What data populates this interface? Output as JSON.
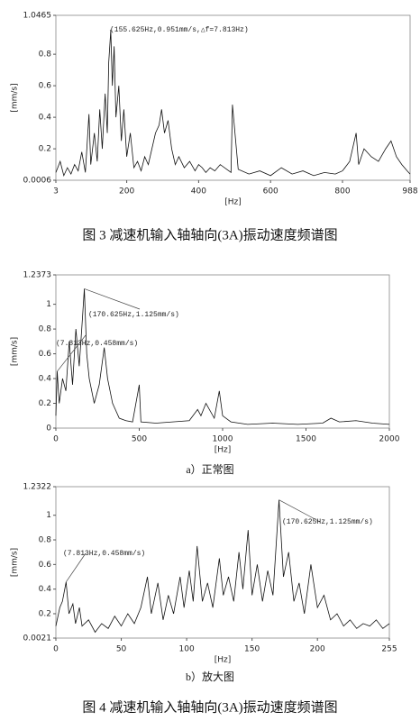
{
  "chart_data": [
    {
      "type": "line",
      "x_label": "[Hz]",
      "y_label": "[mm/s]",
      "x": [
        3,
        15,
        25,
        35,
        45,
        55,
        65,
        75,
        85,
        95,
        100,
        110,
        118,
        125,
        132,
        140,
        146,
        150,
        155.625,
        160,
        165,
        170,
        178,
        185,
        192,
        200,
        210,
        220,
        230,
        240,
        250,
        260,
        270,
        280,
        290,
        297,
        305,
        315,
        325,
        335,
        345,
        360,
        375,
        390,
        400,
        410,
        420,
        432,
        445,
        460,
        490,
        494,
        510,
        540,
        570,
        600,
        630,
        660,
        690,
        720,
        750,
        780,
        800,
        820,
        838,
        845,
        860,
        880,
        900,
        920,
        935,
        950,
        965,
        980,
        988
      ],
      "series": [
        {
          "name": "spectrum",
          "color": "#111111",
          "values": [
            0.05,
            0.12,
            0.03,
            0.08,
            0.04,
            0.1,
            0.06,
            0.18,
            0.05,
            0.42,
            0.1,
            0.3,
            0.12,
            0.45,
            0.2,
            0.55,
            0.3,
            0.75,
            0.951,
            0.6,
            0.85,
            0.4,
            0.6,
            0.25,
            0.45,
            0.15,
            0.3,
            0.08,
            0.12,
            0.06,
            0.15,
            0.1,
            0.2,
            0.3,
            0.35,
            0.45,
            0.3,
            0.38,
            0.2,
            0.1,
            0.15,
            0.08,
            0.12,
            0.06,
            0.1,
            0.08,
            0.05,
            0.08,
            0.06,
            0.1,
            0.05,
            0.48,
            0.07,
            0.04,
            0.06,
            0.03,
            0.08,
            0.04,
            0.06,
            0.03,
            0.05,
            0.04,
            0.06,
            0.12,
            0.3,
            0.1,
            0.2,
            0.15,
            0.12,
            0.2,
            0.25,
            0.15,
            0.1,
            0.06,
            0.04
          ]
        }
      ],
      "xlim": [
        3,
        988
      ],
      "xticks": [
        3,
        200,
        400,
        600,
        800,
        988
      ],
      "ylim": [
        0.0006,
        1.0465
      ],
      "yticks": [
        0.0006,
        0.2,
        0.4,
        0.6,
        0.8,
        1.0465
      ],
      "annotations": [
        {
          "text": "(155.625Hz,0.951mm/s,△f=7.813Hz)",
          "x": 155.625,
          "y": 0.951
        }
      ]
    },
    {
      "type": "line",
      "x_label": "[Hz]",
      "y_label": "[mm/s]",
      "caption": "a）正常图",
      "x": [
        0,
        7.813,
        20,
        40,
        60,
        80,
        100,
        120,
        140,
        160,
        170.625,
        185,
        200,
        230,
        260,
        290,
        310,
        340,
        380,
        420,
        460,
        500,
        510,
        600,
        700,
        800,
        850,
        870,
        900,
        950,
        980,
        1000,
        1050,
        1150,
        1300,
        1450,
        1600,
        1650,
        1700,
        1800,
        1900,
        2000
      ],
      "series": [
        {
          "name": "spectrum",
          "color": "#111111",
          "values": [
            0.1,
            0.458,
            0.2,
            0.4,
            0.3,
            0.7,
            0.35,
            0.8,
            0.5,
            0.9,
            1.125,
            0.6,
            0.4,
            0.2,
            0.35,
            0.65,
            0.4,
            0.2,
            0.08,
            0.06,
            0.05,
            0.35,
            0.05,
            0.04,
            0.05,
            0.06,
            0.15,
            0.1,
            0.2,
            0.08,
            0.3,
            0.1,
            0.05,
            0.03,
            0.04,
            0.03,
            0.04,
            0.08,
            0.05,
            0.06,
            0.04,
            0.03
          ]
        }
      ],
      "xlim": [
        0,
        2000
      ],
      "xticks": [
        0,
        500,
        1000,
        1500,
        2000
      ],
      "ylim": [
        0,
        1.2373
      ],
      "yticks": [
        0,
        0.2,
        0.4,
        0.6,
        0.8,
        1,
        1.2373
      ],
      "annotations": [
        {
          "text": "(7.813Hz,0.458mm/s)",
          "x": 7.813,
          "y": 0.458
        },
        {
          "text": "(170.625Hz,1.125mm/s)",
          "x": 170.625,
          "y": 1.125
        }
      ]
    },
    {
      "type": "line",
      "x_label": "[Hz]",
      "y_label": "[mm/s]",
      "caption": "b）放大图",
      "x": [
        0,
        3,
        5,
        7.813,
        10,
        13,
        15,
        18,
        20,
        25,
        30,
        35,
        40,
        45,
        50,
        55,
        60,
        65,
        70,
        73,
        78,
        82,
        86,
        90,
        95,
        98,
        102,
        105,
        108,
        112,
        116,
        120,
        125,
        128,
        132,
        136,
        140,
        143,
        147,
        150,
        154,
        158,
        162,
        166,
        170.625,
        174,
        178,
        182,
        186,
        190,
        195,
        200,
        205,
        210,
        215,
        220,
        225,
        230,
        235,
        240,
        245,
        250,
        255
      ],
      "series": [
        {
          "name": "spectrum",
          "color": "#111111",
          "values": [
            0.1,
            0.25,
            0.3,
            0.458,
            0.2,
            0.28,
            0.12,
            0.25,
            0.1,
            0.15,
            0.05,
            0.12,
            0.08,
            0.18,
            0.1,
            0.2,
            0.12,
            0.25,
            0.5,
            0.2,
            0.45,
            0.15,
            0.35,
            0.2,
            0.5,
            0.25,
            0.55,
            0.3,
            0.75,
            0.3,
            0.45,
            0.25,
            0.65,
            0.35,
            0.5,
            0.3,
            0.7,
            0.4,
            0.88,
            0.35,
            0.6,
            0.3,
            0.55,
            0.35,
            1.125,
            0.5,
            0.7,
            0.3,
            0.45,
            0.2,
            0.6,
            0.25,
            0.35,
            0.15,
            0.2,
            0.1,
            0.15,
            0.08,
            0.12,
            0.1,
            0.15,
            0.08,
            0.12
          ]
        }
      ],
      "xlim": [
        0,
        255
      ],
      "xticks": [
        0,
        50,
        100,
        150,
        200,
        255
      ],
      "ylim": [
        0.0021,
        1.2322
      ],
      "yticks": [
        0.0021,
        0.2,
        0.4,
        0.6,
        0.8,
        1,
        1.2322
      ],
      "annotations": [
        {
          "text": "(7.813Hz,0.458mm/s)",
          "x": 7.813,
          "y": 0.458
        },
        {
          "text": "(170.625Hz,1.125mm/s)",
          "x": 170.625,
          "y": 1.125
        }
      ]
    }
  ],
  "figure_captions": [
    "图 3  减速机输入轴轴向(3A)振动速度频谱图",
    "图 4  减速机输入轴轴向(3A)振动速度频谱图"
  ]
}
